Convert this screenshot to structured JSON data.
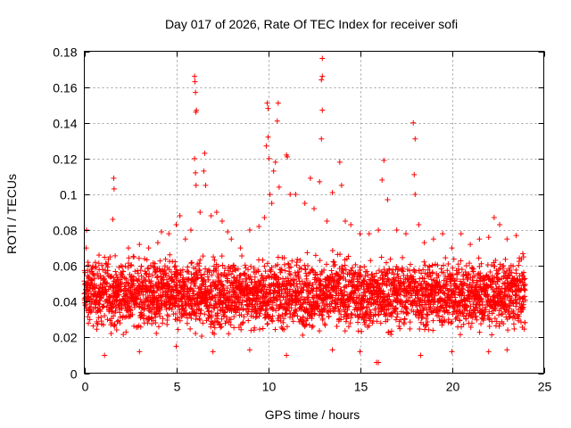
{
  "chart_data": {
    "type": "scatter",
    "title": "Day 017 of 2026, Rate Of TEC Index for receiver sofi",
    "xlabel": "GPS time / hours",
    "ylabel": "ROTI / TECUs",
    "xlim": [
      0,
      25
    ],
    "ylim": [
      0,
      0.18
    ],
    "x_ticks": [
      "0",
      "5",
      "10",
      "15",
      "20",
      "25"
    ],
    "y_ticks": [
      "0",
      "0.02",
      "0.04",
      "0.06",
      "0.08",
      "0.1",
      "0.12",
      "0.14",
      "0.16",
      "0.18"
    ],
    "grid": true,
    "marker": "plus",
    "color": "#ff0000",
    "series": [
      {
        "points": [
          [
            0.05,
            0.045
          ],
          [
            0.1,
            0.07
          ],
          [
            0.12,
            0.08
          ],
          [
            0.2,
            0.062
          ],
          [
            0.3,
            0.03
          ],
          [
            0.5,
            0.055
          ],
          [
            0.8,
            0.066
          ],
          [
            1.0,
            0.058
          ],
          [
            1.2,
            0.05
          ],
          [
            1.4,
            0.065
          ],
          [
            1.6,
            0.109
          ],
          [
            1.62,
            0.103
          ],
          [
            1.55,
            0.086
          ],
          [
            2.0,
            0.06
          ],
          [
            2.4,
            0.07
          ],
          [
            2.7,
            0.065
          ],
          [
            3.0,
            0.072
          ],
          [
            3.5,
            0.07
          ],
          [
            4.0,
            0.073
          ],
          [
            4.2,
            0.079
          ],
          [
            4.6,
            0.078
          ],
          [
            5.0,
            0.083
          ],
          [
            5.2,
            0.088
          ],
          [
            5.5,
            0.075
          ],
          [
            5.8,
            0.08
          ],
          [
            6.0,
            0.166
          ],
          [
            6.02,
            0.163
          ],
          [
            6.05,
            0.157
          ],
          [
            6.07,
            0.146
          ],
          [
            6.1,
            0.147
          ],
          [
            6.0,
            0.12
          ],
          [
            6.05,
            0.112
          ],
          [
            6.08,
            0.105
          ],
          [
            6.3,
            0.09
          ],
          [
            6.5,
            0.113
          ],
          [
            6.55,
            0.123
          ],
          [
            6.6,
            0.105
          ],
          [
            6.9,
            0.088
          ],
          [
            7.2,
            0.09
          ],
          [
            7.5,
            0.085
          ],
          [
            7.8,
            0.079
          ],
          [
            8.0,
            0.075
          ],
          [
            8.5,
            0.07
          ],
          [
            9.0,
            0.08
          ],
          [
            9.5,
            0.082
          ],
          [
            9.8,
            0.087
          ],
          [
            9.9,
            0.127
          ],
          [
            10.0,
            0.132
          ],
          [
            9.95,
            0.151
          ],
          [
            10.0,
            0.148
          ],
          [
            10.05,
            0.12
          ],
          [
            10.1,
            0.1
          ],
          [
            10.2,
            0.095
          ],
          [
            10.3,
            0.113
          ],
          [
            10.5,
            0.141
          ],
          [
            10.55,
            0.151
          ],
          [
            10.4,
            0.118
          ],
          [
            10.6,
            0.104
          ],
          [
            11.0,
            0.122
          ],
          [
            11.05,
            0.121
          ],
          [
            11.2,
            0.1
          ],
          [
            11.5,
            0.1
          ],
          [
            12.0,
            0.095
          ],
          [
            12.3,
            0.109
          ],
          [
            12.5,
            0.092
          ],
          [
            12.8,
            0.107
          ],
          [
            12.9,
            0.131
          ],
          [
            12.95,
            0.147
          ],
          [
            12.9,
            0.164
          ],
          [
            12.95,
            0.166
          ],
          [
            12.95,
            0.176
          ],
          [
            13.2,
            0.085
          ],
          [
            13.5,
            0.101
          ],
          [
            13.9,
            0.118
          ],
          [
            14.0,
            0.105
          ],
          [
            14.2,
            0.085
          ],
          [
            14.5,
            0.083
          ],
          [
            15.0,
            0.078
          ],
          [
            15.5,
            0.078
          ],
          [
            16.0,
            0.08
          ],
          [
            16.2,
            0.108
          ],
          [
            16.3,
            0.119
          ],
          [
            16.5,
            0.097
          ],
          [
            17.0,
            0.08
          ],
          [
            17.5,
            0.078
          ],
          [
            17.9,
            0.14
          ],
          [
            18.0,
            0.131
          ],
          [
            17.95,
            0.111
          ],
          [
            18.0,
            0.1
          ],
          [
            18.2,
            0.083
          ],
          [
            18.5,
            0.073
          ],
          [
            19.0,
            0.075
          ],
          [
            19.5,
            0.078
          ],
          [
            20.0,
            0.07
          ],
          [
            20.5,
            0.078
          ],
          [
            21.0,
            0.072
          ],
          [
            21.5,
            0.075
          ],
          [
            22.0,
            0.076
          ],
          [
            22.3,
            0.087
          ],
          [
            22.6,
            0.083
          ],
          [
            23.0,
            0.075
          ],
          [
            23.5,
            0.077
          ],
          [
            23.9,
            0.065
          ],
          [
            16.0,
            0.006
          ],
          [
            15.9,
            0.006
          ],
          [
            18.3,
            0.01
          ],
          [
            1.1,
            0.01
          ],
          [
            3.0,
            0.012
          ],
          [
            7.0,
            0.012
          ],
          [
            11.0,
            0.01
          ],
          [
            13.5,
            0.013
          ],
          [
            20.0,
            0.012
          ],
          [
            23.0,
            0.013
          ],
          [
            5.0,
            0.015
          ],
          [
            9.0,
            0.013
          ],
          [
            15.0,
            0.012
          ],
          [
            22.0,
            0.012
          ]
        ],
        "band": {
          "x_start": 0.0,
          "x_end": 24.0,
          "step": 0.01,
          "typical_low": 0.018,
          "typical_high": 0.07
        }
      }
    ]
  }
}
